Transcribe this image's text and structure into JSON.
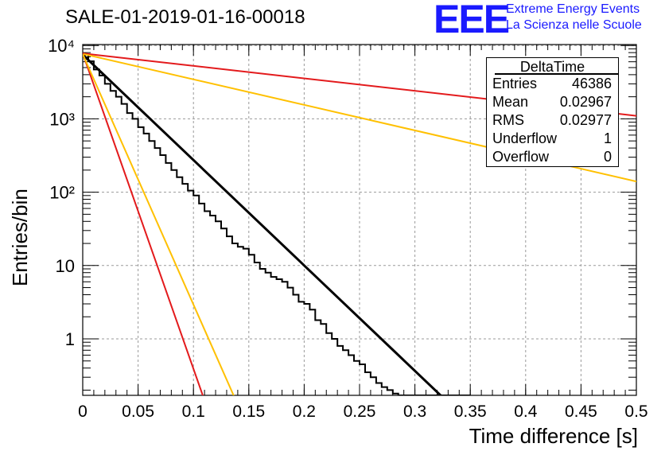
{
  "title": "SALE-01-2019-01-16-00018",
  "logo": {
    "mark": "EEE",
    "line1": "Extreme Energy Events",
    "line2": "La Scienza nelle Scuole"
  },
  "stats": {
    "title": "DeltaTime",
    "rows": [
      {
        "name": "Entries",
        "value": "46386"
      },
      {
        "name": "Mean",
        "value": "0.02967"
      },
      {
        "name": "RMS",
        "value": "0.02977"
      },
      {
        "name": "Underflow",
        "value": "1"
      },
      {
        "name": "Overflow",
        "value": "0"
      }
    ]
  },
  "chart_data": {
    "type": "histogram",
    "title": "SALE-01-2019-01-16-00018",
    "xlabel": "Time difference [s]",
    "ylabel": "Entries/bin",
    "xlim": [
      0,
      0.5
    ],
    "ylim": [
      0.17,
      11000
    ],
    "yscale": "log",
    "grid": true,
    "legend": "top-right",
    "x_ticks": [
      "0",
      "0.05",
      "0.1",
      "0.15",
      "0.2",
      "0.25",
      "0.3",
      "0.35",
      "0.4",
      "0.45",
      "0.5"
    ],
    "y_ticks": [
      "1",
      "10",
      "10²",
      "10³",
      "10⁴"
    ],
    "bin_width": 0.005,
    "histogram_bin_lows": [
      0,
      0.005,
      0.01,
      0.015,
      0.02,
      0.025,
      0.03,
      0.035,
      0.04,
      0.045,
      0.05,
      0.055,
      0.06,
      0.065,
      0.07,
      0.075,
      0.08,
      0.085,
      0.09,
      0.095,
      0.1,
      0.105,
      0.11,
      0.115,
      0.12,
      0.125,
      0.13,
      0.135,
      0.14,
      0.145,
      0.15,
      0.155,
      0.16,
      0.165,
      0.17,
      0.175,
      0.18,
      0.185,
      0.19,
      0.195,
      0.2,
      0.205,
      0.21,
      0.215,
      0.22,
      0.225,
      0.23,
      0.235,
      0.24,
      0.245,
      0.25,
      0.255,
      0.26,
      0.265,
      0.27,
      0.275,
      0.28,
      0.285,
      0.29,
      0.295,
      0.3,
      0.305,
      0.31,
      0.315,
      0.32,
      0.325,
      0.33,
      0.335,
      0.34,
      0.345
    ],
    "histogram_counts": [
      7500,
      6100,
      4700,
      3900,
      3000,
      2400,
      2000,
      1600,
      1200,
      1000,
      770,
      630,
      500,
      400,
      320,
      250,
      200,
      160,
      130,
      105,
      90,
      70,
      55,
      48,
      40,
      32,
      25,
      20,
      18,
      17,
      14,
      11,
      9,
      8,
      7,
      6.5,
      6,
      5,
      4,
      3.2,
      3,
      2.5,
      1.8,
      1.6,
      1.2,
      1,
      0.8,
      0.7,
      0.6,
      0.5,
      0.45,
      0.35,
      0.3,
      0.25,
      0.22,
      0.2,
      0.18,
      0.16,
      0.14,
      0.12,
      0.1,
      0.09,
      0.08,
      0.07,
      0.06,
      0.05,
      0.045,
      0.04,
      0.035,
      0.03
    ],
    "series": [
      {
        "color": "#000000",
        "points": [
          [
            0,
            7500
          ],
          [
            0.325,
            0.16
          ]
        ]
      },
      {
        "color": "#e31a1c",
        "points": [
          [
            0,
            7800
          ],
          [
            0.5,
            1100
          ]
        ]
      },
      {
        "color": "#ffc000",
        "points": [
          [
            0,
            7700
          ],
          [
            0.5,
            140
          ]
        ]
      },
      {
        "color": "#e31a1c",
        "points": [
          [
            0,
            7800
          ],
          [
            0.109,
            0.16
          ]
        ]
      },
      {
        "color": "#ffc000",
        "points": [
          [
            0,
            7600
          ],
          [
            0.137,
            0.16
          ]
        ]
      }
    ]
  }
}
